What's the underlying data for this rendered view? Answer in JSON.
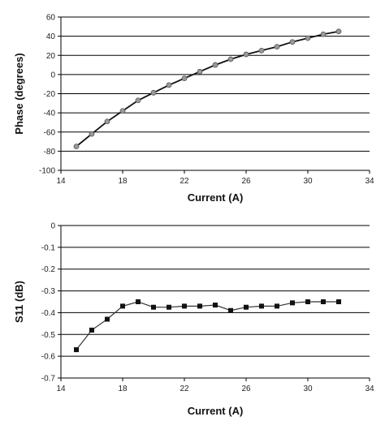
{
  "chart_data": [
    {
      "type": "line",
      "xlabel": "Current (A)",
      "ylabel": "Phase (degrees)",
      "xlim": [
        14,
        34
      ],
      "ylim": [
        -100,
        60
      ],
      "x_ticks": [
        "14",
        "18",
        "22",
        "26",
        "30",
        "34"
      ],
      "y_ticks": [
        "60",
        "40",
        "20",
        "0",
        "-20",
        "-40",
        "-60",
        "-80",
        "-100"
      ],
      "grid": "horizontal",
      "marker": "circle",
      "color": "#111111",
      "marker_color": "#9a9a9a",
      "series": [
        {
          "x": [
            15,
            16,
            17,
            18,
            19,
            20,
            21,
            22,
            23,
            24,
            25,
            26,
            27,
            28,
            29,
            30,
            31,
            32
          ],
          "values": [
            -75,
            -62,
            -49,
            -38,
            -27,
            -19,
            -11,
            -4,
            3,
            10,
            16,
            21,
            25,
            29,
            34,
            38,
            42,
            45
          ]
        }
      ]
    },
    {
      "type": "line",
      "xlabel": "Current (A)",
      "ylabel": "S11 (dB)",
      "xlim": [
        14,
        34
      ],
      "ylim": [
        -0.7,
        0
      ],
      "x_ticks": [
        "14",
        "18",
        "22",
        "26",
        "30",
        "34"
      ],
      "y_ticks": [
        "0",
        "-0.1",
        "-0.2",
        "-0.3",
        "-0.4",
        "-0.5",
        "-0.6",
        "-0.7"
      ],
      "grid": "horizontal",
      "marker": "square",
      "color": "#333333",
      "marker_color": "#111111",
      "series": [
        {
          "x": [
            15,
            16,
            17,
            18,
            19,
            20,
            21,
            22,
            23,
            24,
            25,
            26,
            27,
            28,
            29,
            30,
            31,
            32
          ],
          "values": [
            -0.57,
            -0.48,
            -0.43,
            -0.37,
            -0.35,
            -0.375,
            -0.375,
            -0.37,
            -0.37,
            -0.365,
            -0.39,
            -0.375,
            -0.37,
            -0.37,
            -0.355,
            -0.35,
            -0.35,
            -0.35
          ]
        }
      ]
    }
  ]
}
